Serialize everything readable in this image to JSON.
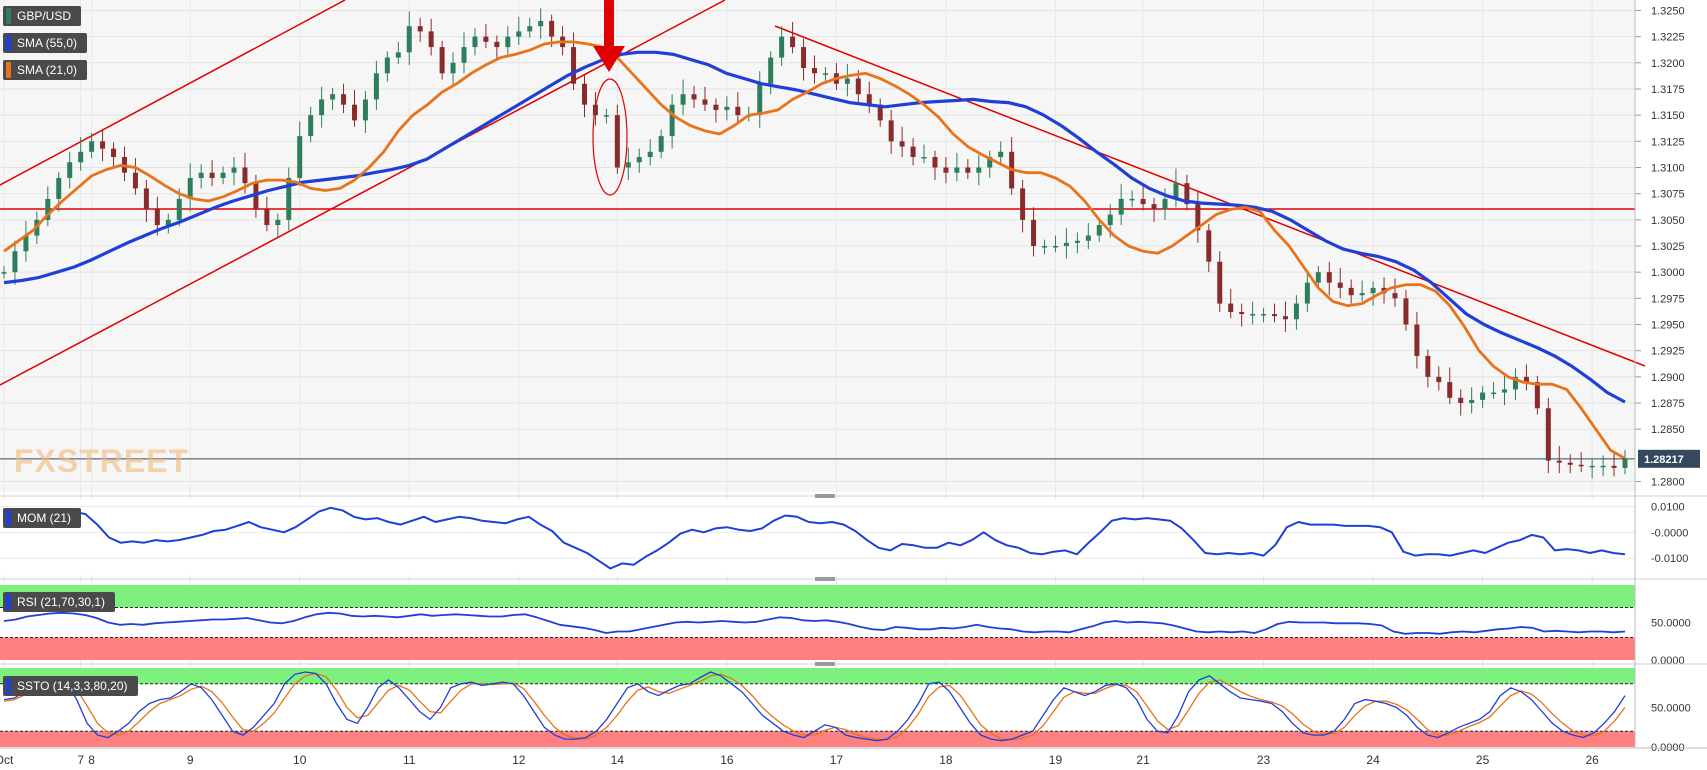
{
  "chart_data": {
    "type": "line",
    "symbol": "GBP/USD",
    "last_price": "1.28217",
    "indicators": {
      "sma55": {
        "label": "SMA (55,0)",
        "color": "#1f3fd6"
      },
      "sma21": {
        "label": "SMA (21,0)",
        "color": "#e8731a"
      },
      "mom": {
        "label": "MOM (21)",
        "color": "#1f3fd6"
      },
      "rsi": {
        "label": "RSI (21,70,30,1)",
        "color": "#1f3fd6"
      },
      "ssto": {
        "label": "SSTO (14,3,3,80,20)",
        "color_k": "#1f3fd6",
        "color_d": "#e8731a"
      }
    },
    "price_ticks": [
      "1.3250",
      "1.3225",
      "1.3200",
      "1.3175",
      "1.3150",
      "1.3125",
      "1.3100",
      "1.3075",
      "1.3050",
      "1.3025",
      "1.3000",
      "1.2975",
      "1.2950",
      "1.2925",
      "1.2900",
      "1.2875",
      "1.2850",
      "1.2800"
    ],
    "price_ylim": [
      1.279,
      1.326
    ],
    "mom_ticks": [
      "0.0100",
      "-0.0000",
      "-0.0100"
    ],
    "rsi_ticks": [
      "50.0000",
      "0.0000"
    ],
    "ssto_ticks": [
      "50.0000",
      "0.0000"
    ],
    "dates": [
      "Oct",
      "7",
      "8",
      "9",
      "10",
      "11",
      "12",
      "14",
      "16",
      "17",
      "18",
      "19",
      "21",
      "23",
      "24",
      "25",
      "26"
    ],
    "date_pos": [
      0,
      7,
      8,
      17,
      27,
      37,
      47,
      56,
      66,
      76,
      86,
      96,
      104,
      115,
      125,
      135,
      145
    ],
    "n_bars": 149,
    "close": [
      1.3,
      1.302,
      1.3035,
      1.305,
      1.307,
      1.309,
      1.3105,
      1.3115,
      1.3125,
      1.3118,
      1.311,
      1.3095,
      1.308,
      1.306,
      1.3045,
      1.305,
      1.307,
      1.309,
      1.3095,
      1.309,
      1.3095,
      1.31,
      1.3085,
      1.306,
      1.3045,
      1.305,
      1.309,
      1.313,
      1.315,
      1.3165,
      1.317,
      1.316,
      1.3145,
      1.3165,
      1.319,
      1.3205,
      1.321,
      1.3235,
      1.323,
      1.3215,
      1.319,
      1.32,
      1.3215,
      1.3225,
      1.322,
      1.3215,
      1.3225,
      1.323,
      1.3235,
      1.324,
      1.3225,
      1.3215,
      1.318,
      1.316,
      1.315,
      1.315,
      1.31,
      1.3105,
      1.311,
      1.3115,
      1.313,
      1.316,
      1.317,
      1.3165,
      1.316,
      1.3155,
      1.3158,
      1.315,
      1.315,
      1.318,
      1.3205,
      1.3225,
      1.3215,
      1.3195,
      1.319,
      1.319,
      1.318,
      1.3185,
      1.317,
      1.316,
      1.3145,
      1.3125,
      1.312,
      1.311,
      1.311,
      1.31,
      1.3095,
      1.31,
      1.3095,
      1.31,
      1.311,
      1.3115,
      1.308,
      1.305,
      1.3025,
      1.3025,
      1.3025,
      1.3028,
      1.303,
      1.3035,
      1.3045,
      1.3055,
      1.307,
      1.307,
      1.3065,
      1.306,
      1.307,
      1.3085,
      1.3065,
      1.304,
      1.301,
      1.297,
      1.2962,
      1.296,
      1.296,
      1.296,
      1.2958,
      1.2955,
      1.297,
      1.299,
      1.3,
      1.299,
      1.2985,
      1.2978,
      1.298,
      1.2985,
      1.298,
      1.2975,
      1.295,
      1.292,
      1.29,
      1.2895,
      1.288,
      1.2875,
      1.2878,
      1.2885,
      1.2885,
      1.2888,
      1.29,
      1.2895,
      1.287,
      1.282,
      1.2818,
      1.2816,
      1.2815,
      1.2815,
      1.2815,
      1.2813,
      1.2822
    ],
    "sma21": [
      1.302,
      1.303,
      1.304,
      1.3055,
      1.3068,
      1.308,
      1.3092,
      1.3098,
      1.3102,
      1.31,
      1.3092,
      1.3083,
      1.3075,
      1.307,
      1.3068,
      1.3072,
      1.3078,
      1.3085,
      1.3088,
      1.3088,
      1.3086,
      1.308,
      1.3078,
      1.308,
      1.3088,
      1.31,
      1.3115,
      1.3135,
      1.315,
      1.316,
      1.3172,
      1.318,
      1.319,
      1.3198,
      1.3205,
      1.3208,
      1.3212,
      1.3218,
      1.322,
      1.322,
      1.3218,
      1.3215,
      1.3205,
      1.319,
      1.3175,
      1.316,
      1.3148,
      1.314,
      1.3135,
      1.3132,
      1.314,
      1.315,
      1.3152,
      1.3155,
      1.3165,
      1.3172,
      1.318,
      1.3185,
      1.3188,
      1.319,
      1.3185,
      1.3178,
      1.317,
      1.316,
      1.3148,
      1.3132,
      1.312,
      1.3112,
      1.3105,
      1.3098,
      1.3095,
      1.3095,
      1.309,
      1.3082,
      1.3068,
      1.305,
      1.3035,
      1.3025,
      1.302,
      1.3018,
      1.3025,
      1.3035,
      1.3045,
      1.3055,
      1.306,
      1.3062,
      1.3058,
      1.304,
      1.3025,
      1.3005,
      1.2985,
      1.2972,
      1.2968,
      1.297,
      1.2978,
      1.2985,
      1.2988,
      1.2988,
      1.2982,
      1.2968,
      1.2948,
      1.2925,
      1.291,
      1.29,
      1.2895,
      1.2893,
      1.2893,
      1.2888,
      1.287,
      1.285,
      1.283,
      1.2822
    ],
    "sma21_start": 0,
    "sma55": [
      1.299,
      1.2992,
      1.2995,
      1.3,
      1.3005,
      1.3012,
      1.302,
      1.3028,
      1.3035,
      1.3042,
      1.3048,
      1.3055,
      1.3062,
      1.3068,
      1.3073,
      1.3078,
      1.3082,
      1.3086,
      1.3088,
      1.309,
      1.3092,
      1.3095,
      1.3098,
      1.3102,
      1.3108,
      1.3118,
      1.3128,
      1.3138,
      1.3148,
      1.3158,
      1.3168,
      1.3178,
      1.3188,
      1.3196,
      1.3203,
      1.3208,
      1.321,
      1.321,
      1.3208,
      1.3203,
      1.3198,
      1.319,
      1.3185,
      1.318,
      1.3177,
      1.3174,
      1.317,
      1.3166,
      1.3162,
      1.316,
      1.3158,
      1.316,
      1.3162,
      1.3163,
      1.3164,
      1.3165,
      1.3163,
      1.3162,
      1.3158,
      1.315,
      1.314,
      1.3128,
      1.3115,
      1.3103,
      1.309,
      1.308,
      1.3073,
      1.3068,
      1.3066,
      1.3065,
      1.3064,
      1.3062,
      1.3058,
      1.305,
      1.304,
      1.303,
      1.3022,
      1.3018,
      1.3015,
      1.301,
      1.3002,
      1.299,
      1.2975,
      1.296,
      1.295,
      1.2942,
      1.2935,
      1.2928,
      1.292,
      1.291,
      1.2898,
      1.2885,
      1.2876
    ],
    "sma55_start": 0,
    "mom": [
      0.0075,
      0.007,
      0.008,
      0.0085,
      0.009,
      0.0088,
      0.008,
      0.007,
      0.003,
      -0.002,
      -0.004,
      -0.0035,
      -0.004,
      -0.003,
      -0.0035,
      -0.003,
      -0.002,
      -0.001,
      0.0005,
      0.001,
      0.0025,
      0.004,
      0.002,
      0.001,
      0.0,
      0.002,
      0.005,
      0.008,
      0.0095,
      0.0085,
      0.006,
      0.005,
      0.0055,
      0.004,
      0.003,
      0.0045,
      0.006,
      0.004,
      0.005,
      0.006,
      0.0055,
      0.0045,
      0.004,
      0.0035,
      0.005,
      0.006,
      0.003,
      0.0005,
      -0.004,
      -0.006,
      -0.008,
      -0.011,
      -0.014,
      -0.012,
      -0.0125,
      -0.0095,
      -0.007,
      -0.004,
      -0.0005,
      0.001,
      0.0,
      0.0015,
      0.002,
      0.001,
      0.0005,
      0.0015,
      0.0045,
      0.0065,
      0.006,
      0.004,
      0.0035,
      0.004,
      0.003,
      0.0005,
      -0.003,
      -0.006,
      -0.007,
      -0.0045,
      -0.005,
      -0.006,
      -0.006,
      -0.004,
      -0.005,
      -0.003,
      0.0,
      -0.003,
      -0.005,
      -0.006,
      -0.008,
      -0.0085,
      -0.0075,
      -0.007,
      -0.0085,
      -0.004,
      0.0,
      0.0045,
      0.0055,
      0.005,
      0.0055,
      0.005,
      0.0045,
      0.0015,
      -0.003,
      -0.008,
      -0.0085,
      -0.008,
      -0.0085,
      -0.008,
      -0.009,
      -0.005,
      0.002,
      0.004,
      0.003,
      0.003,
      0.003,
      0.0025,
      0.0025,
      0.0025,
      0.002,
      0.0,
      -0.0075,
      -0.009,
      -0.0085,
      -0.0085,
      -0.009,
      -0.008,
      -0.007,
      -0.008,
      -0.006,
      -0.004,
      -0.003,
      -0.001,
      -0.002,
      -0.007,
      -0.0065,
      -0.007,
      -0.008,
      -0.007,
      -0.008,
      -0.0085
    ],
    "rsi": [
      52,
      54,
      58,
      60,
      62,
      63,
      62,
      60,
      56,
      50,
      47,
      48,
      47,
      49,
      50,
      51,
      52,
      53,
      54,
      54,
      55,
      56,
      53,
      50,
      49,
      52,
      57,
      61,
      63,
      62,
      59,
      58,
      59,
      58,
      57,
      59,
      61,
      59,
      60,
      61,
      60,
      59,
      58,
      58,
      60,
      61,
      57,
      52,
      47,
      45,
      43,
      40,
      36,
      38,
      38,
      41,
      44,
      47,
      50,
      51,
      50,
      51,
      52,
      51,
      50,
      51,
      54,
      57,
      56,
      53,
      52,
      53,
      51,
      48,
      44,
      41,
      40,
      44,
      43,
      41,
      41,
      43,
      42,
      44,
      47,
      44,
      42,
      41,
      38,
      37,
      38,
      38,
      37,
      41,
      45,
      50,
      52,
      50,
      51,
      50,
      49,
      46,
      42,
      38,
      37,
      38,
      37,
      38,
      36,
      41,
      48,
      51,
      50,
      50,
      50,
      49,
      49,
      49,
      48,
      46,
      38,
      35,
      36,
      36,
      35,
      37,
      38,
      37,
      39,
      41,
      42,
      44,
      43,
      38,
      39,
      38,
      37,
      38,
      38,
      37,
      38
    ],
    "ssto_k": [
      60,
      62,
      70,
      80,
      85,
      88,
      82,
      60,
      30,
      15,
      12,
      20,
      30,
      45,
      55,
      60,
      62,
      70,
      80,
      75,
      60,
      40,
      20,
      15,
      25,
      40,
      55,
      80,
      92,
      95,
      93,
      80,
      55,
      35,
      30,
      50,
      75,
      85,
      75,
      60,
      45,
      35,
      50,
      75,
      80,
      82,
      78,
      80,
      82,
      80,
      65,
      45,
      25,
      15,
      10,
      10,
      12,
      20,
      35,
      55,
      75,
      80,
      70,
      65,
      72,
      78,
      80,
      88,
      95,
      90,
      80,
      70,
      55,
      40,
      30,
      20,
      15,
      12,
      20,
      28,
      25,
      15,
      12,
      10,
      8,
      10,
      20,
      35,
      55,
      80,
      82,
      70,
      50,
      30,
      15,
      10,
      8,
      10,
      15,
      20,
      40,
      60,
      75,
      70,
      65,
      70,
      78,
      80,
      75,
      60,
      35,
      20,
      18,
      40,
      70,
      85,
      90,
      80,
      70,
      62,
      60,
      58,
      55,
      45,
      30,
      18,
      15,
      15,
      20,
      35,
      55,
      60,
      58,
      55,
      50,
      40,
      25,
      15,
      12,
      18,
      25,
      30,
      35,
      45,
      65,
      75,
      70,
      60,
      45,
      30,
      20,
      15,
      12,
      18,
      30,
      45,
      65
    ],
    "ssto_d": [
      58,
      60,
      66,
      74,
      81,
      85,
      84,
      73,
      52,
      30,
      18,
      15,
      20,
      32,
      45,
      55,
      60,
      65,
      73,
      77,
      70,
      56,
      38,
      22,
      20,
      30,
      43,
      62,
      80,
      90,
      93,
      89,
      72,
      50,
      37,
      40,
      56,
      72,
      78,
      72,
      58,
      45,
      43,
      58,
      72,
      80,
      80,
      79,
      80,
      81,
      74,
      58,
      40,
      25,
      15,
      11,
      10,
      15,
      25,
      40,
      58,
      72,
      76,
      70,
      68,
      73,
      78,
      83,
      90,
      92,
      87,
      78,
      65,
      50,
      38,
      28,
      20,
      15,
      15,
      21,
      25,
      22,
      16,
      12,
      10,
      9,
      13,
      25,
      42,
      64,
      76,
      78,
      66,
      47,
      28,
      17,
      10,
      9,
      11,
      15,
      27,
      45,
      63,
      70,
      68,
      68,
      74,
      79,
      78,
      70,
      52,
      33,
      22,
      27,
      47,
      68,
      82,
      85,
      78,
      70,
      64,
      60,
      57,
      52,
      42,
      29,
      20,
      16,
      17,
      25,
      40,
      52,
      58,
      58,
      54,
      47,
      35,
      22,
      15,
      15,
      20,
      26,
      31,
      38,
      52,
      65,
      71,
      67,
      56,
      42,
      30,
      20,
      15,
      14,
      20,
      33,
      50
    ]
  }
}
